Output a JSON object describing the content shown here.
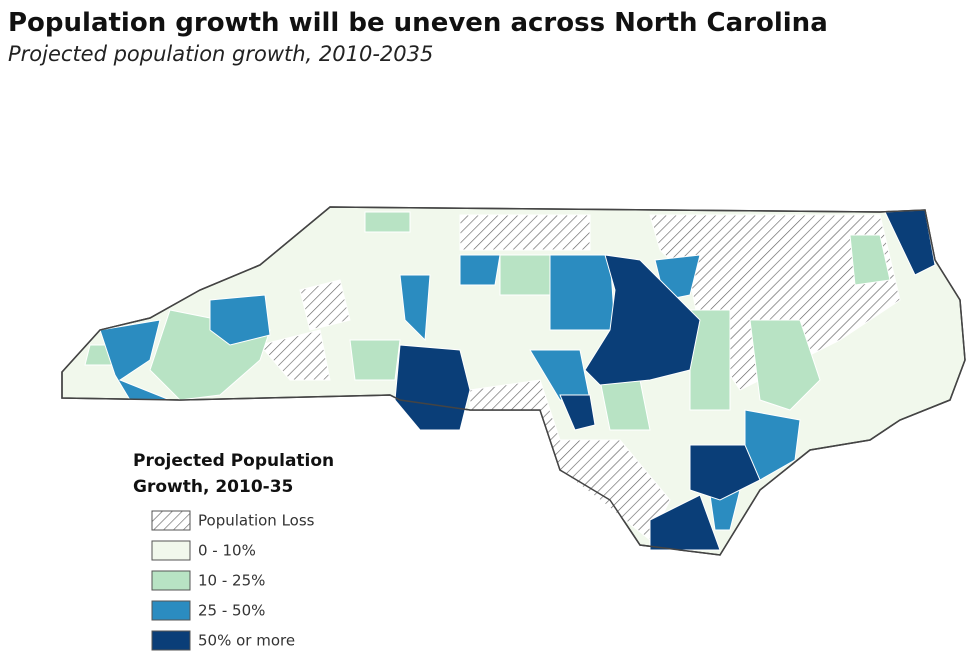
{
  "header": {
    "title": "Population growth will be uneven across North Carolina",
    "subtitle": "Projected population growth, 2010-2035"
  },
  "legend": {
    "title": "Projected Population Growth, 2010-35",
    "items": [
      {
        "label": "Population Loss",
        "color": "#ffffff",
        "pattern": "hatch"
      },
      {
        "label": "0 - 10%",
        "color": "#f1f8ec"
      },
      {
        "label": "10 - 25%",
        "color": "#b8e3c4"
      },
      {
        "label": "25 - 50%",
        "color": "#2b8cc0"
      },
      {
        "label": "50% or more",
        "color": "#0a3e78"
      }
    ]
  }
}
